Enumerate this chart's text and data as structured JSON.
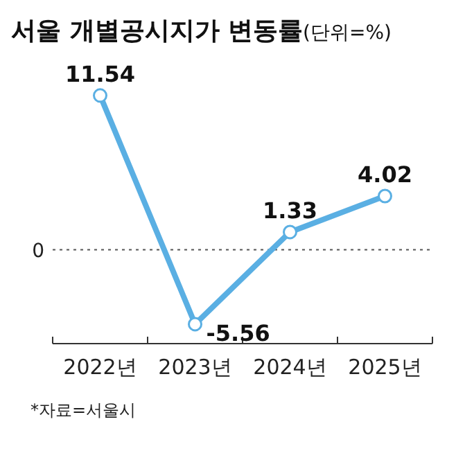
{
  "chart_data": {
    "type": "line",
    "title": "서울 개별공시지가 변동률",
    "subtitle": "(단위=%)",
    "categories": [
      "2022년",
      "2023년",
      "2024년",
      "2025년"
    ],
    "series": [
      {
        "color": "#5aafe3",
        "values": [
          11.54,
          -5.56,
          1.33,
          4.02
        ]
      }
    ],
    "ref_lines": [
      {
        "axis": "y",
        "value": 0,
        "label": "0",
        "color": "#555555",
        "line_style": "dotted"
      }
    ],
    "data_labels": true,
    "marker": "circle",
    "line_style": "solid",
    "annotations": [
      "*자료=서울시"
    ]
  }
}
